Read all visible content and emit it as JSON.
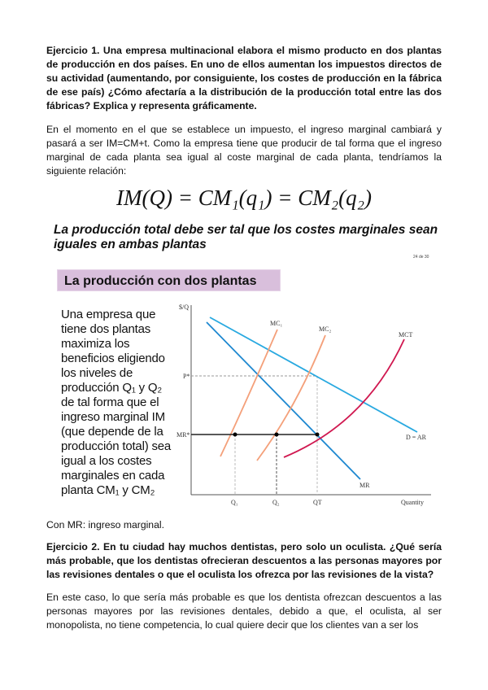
{
  "ex1": {
    "question": "Ejercicio 1. Una empresa multinacional elabora el mismo producto en dos plantas de producción en dos países. En uno de ellos aumentan los impuestos directos de su actividad (aumentando, por consiguiente, los costes de producción en la fábrica de ese país) ¿Cómo afectaría a la distribución de la producción total entre las dos fábricas? Explica y representa gráficamente.",
    "answer": "En el momento en el que se establece un impuesto, el ingreso marginal cambiará y pasará a ser IM=CM+t. Como la empresa tiene que producir de tal forma que el ingreso marginal de cada planta sea igual al coste marginal de cada planta, tendríamos la siguiente relación:",
    "formula": "IM(Q) = CM₁(q₁) = CM₂(q₂)"
  },
  "slide": {
    "heading": "La producción total debe ser tal que los costes marginales sean iguales en ambas plantas",
    "page_number": "24 de 30",
    "box_title": "La producción con dos plantas",
    "side_text": "Una empresa que tiene dos plantas maximiza los beneficios eligiendo los niveles de producción Q₁ y Q₂ de tal forma que el ingreso marginal IM (que depende de la producción total) sea igual a los costes marginales en cada planta CM₁ y CM₂",
    "chart": {
      "ylabel": "$/Q",
      "xlabel": "Quantity",
      "mc1": "MC₁",
      "mc2": "MC₂",
      "mct": "MCT",
      "p_star": "P*",
      "mr_star": "MR*",
      "demand": "D = AR",
      "mr": "MR",
      "q1": "Q₁",
      "q2": "Q₂",
      "qt": "QT",
      "colors": {
        "demand": "#29a9e0",
        "mr": "#1e88d0",
        "mc": "#f4a07a",
        "mct": "#d01850"
      }
    }
  },
  "caption": "Con MR: ingreso marginal.",
  "ex2": {
    "question": "Ejercicio 2. En tu ciudad hay muchos dentistas, pero solo un oculista. ¿Qué sería más probable, que los dentistas ofrecieran descuentos a las personas mayores por las revisiones dentales o que el oculista los ofrezca por las revisiones de la vista?",
    "answer": "En este caso, lo que sería más probable es que los dentista ofrezcan descuentos a las personas mayores por las revisiones dentales, debido a que, el oculista, al ser monopolista, no tiene competencia, lo cual quiere decir que los clientes van a ser los"
  }
}
